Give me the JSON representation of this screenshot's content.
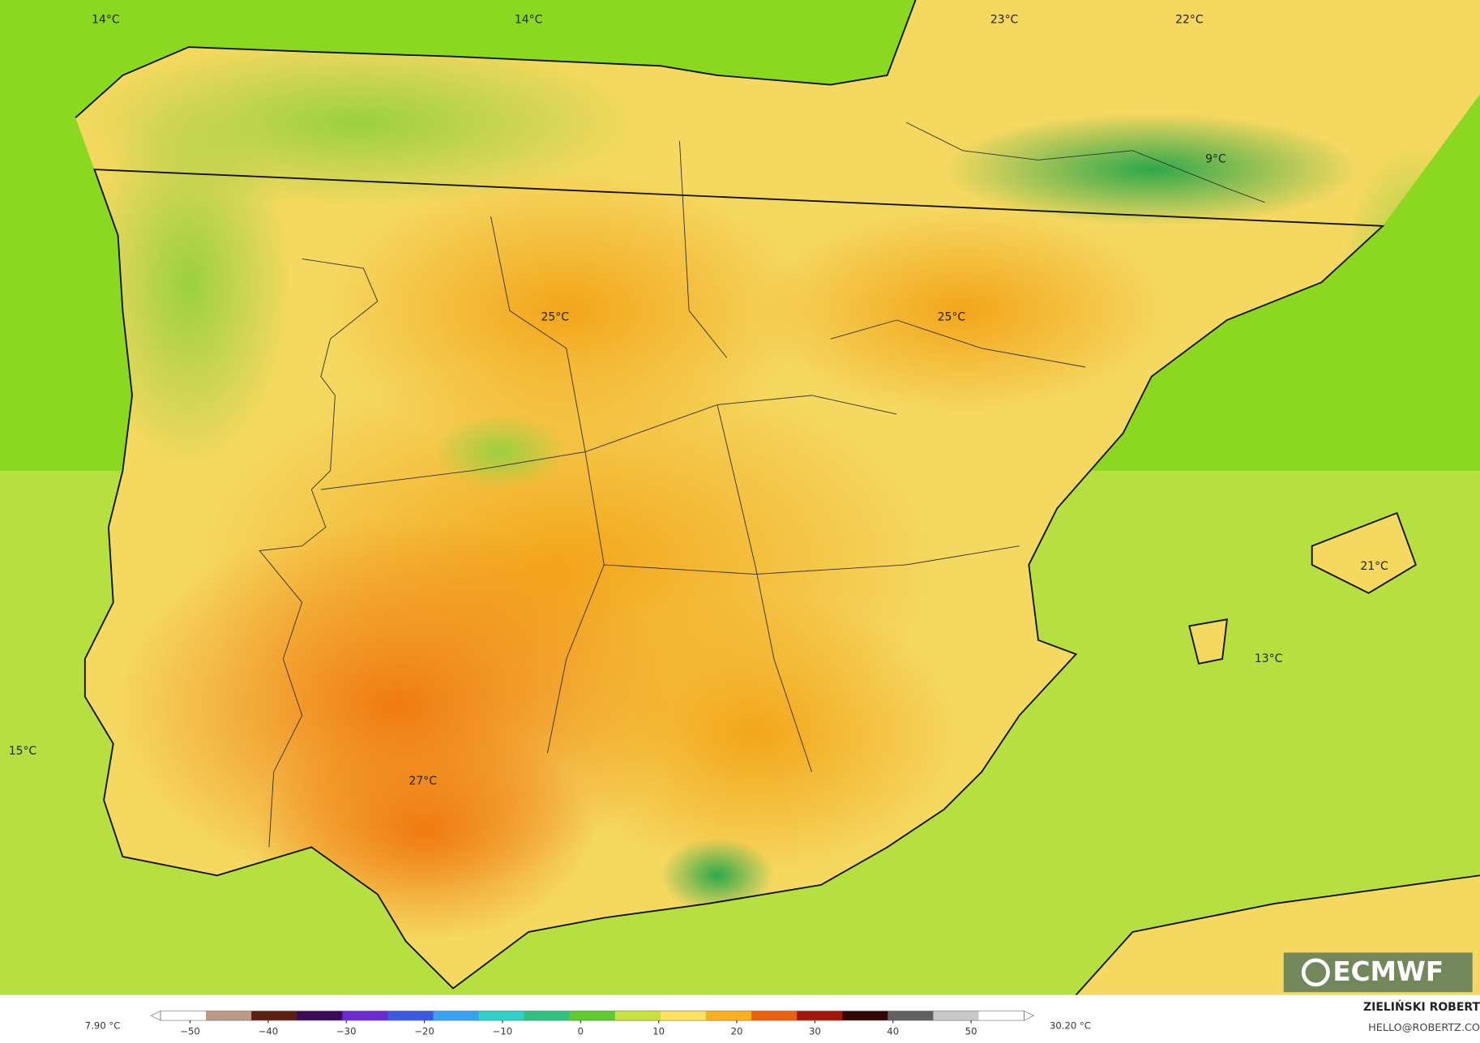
{
  "map": {
    "labels": [
      "14°C",
      "14°C",
      "23°C",
      "22°C",
      "9°C",
      "25°C",
      "25°C",
      "21°C",
      "13°C",
      "15°C",
      "27°C"
    ]
  },
  "colorbar": {
    "min_label": "7.90 °C",
    "max_label": "30.20 °C",
    "lim": [
      -55,
      58
    ],
    "ticks": [
      {
        "value": -50,
        "label": "−50"
      },
      {
        "value": -40,
        "label": "−40"
      },
      {
        "value": -30,
        "label": "−30"
      },
      {
        "value": -20,
        "label": "−20"
      },
      {
        "value": -10,
        "label": "−10"
      },
      0,
      10,
      20,
      30,
      40,
      50
    ],
    "colors": [
      "#ffffff",
      "#b89a85",
      "#5a1f10",
      "#3a0a5a",
      "#6a2ad0",
      "#3a58e0",
      "#3aa0f0",
      "#30d0c8",
      "#30c080",
      "#60c830",
      "#c8e040",
      "#ffe060",
      "#f8b020",
      "#e86010",
      "#a01808",
      "#300808",
      "#606060",
      "#c8c8c8",
      "#ffffff"
    ]
  },
  "credit": {
    "name": "ZIELIŃSKI ROBERT",
    "email": "HELLO@ROBERTZ.CO",
    "logo": "ECMWF"
  }
}
